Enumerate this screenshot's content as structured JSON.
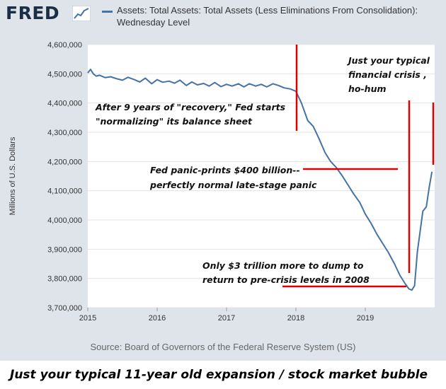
{
  "header": {
    "logo_text": "FRED",
    "logo_icon": "line-chart-icon",
    "legend_label": "Assets: Total Assets: Total Assets (Less Eliminations From Consolidation): Wednesday Level"
  },
  "source_text": "Source: Board of Governors of the Federal Reserve System (US)",
  "bottom_caption": "Just your typical 11-year old expansion / stock market bubble",
  "colors": {
    "series": "#4572a7",
    "annotation_line": "#e00000",
    "frame": "#dfe3ea"
  },
  "chart_data": {
    "type": "line",
    "ylabel": "Millions of U.S. Dollars",
    "xlabel": "",
    "ylim": [
      3700000,
      4600000
    ],
    "yticks": [
      3700000,
      3800000,
      3900000,
      4000000,
      4100000,
      4200000,
      4300000,
      4400000,
      4500000,
      4600000
    ],
    "ytick_labels": [
      "3,700,000",
      "3,800,000",
      "3,900,000",
      "4,000,000",
      "4,100,000",
      "4,200,000",
      "4,300,000",
      "4,400,000",
      "4,500,000",
      "4,600,000"
    ],
    "xlim": [
      2015.0,
      2020.0
    ],
    "xticks": [
      2015,
      2016,
      2017,
      2018,
      2019
    ],
    "xtick_labels": [
      "2015",
      "2016",
      "2017",
      "2018",
      "2019"
    ],
    "grid": "horizontal",
    "legend": "top",
    "series": [
      {
        "x": [
          2015.0,
          2015.04,
          2015.08,
          2015.12,
          2015.17,
          2015.25,
          2015.33,
          2015.42,
          2015.5,
          2015.58,
          2015.67,
          2015.75,
          2015.83,
          2015.92,
          2016.0,
          2016.08,
          2016.17,
          2016.25,
          2016.33,
          2016.42,
          2016.5,
          2016.58,
          2016.67,
          2016.75,
          2016.83,
          2016.92,
          2017.0,
          2017.08,
          2017.17,
          2017.25,
          2017.33,
          2017.42,
          2017.5,
          2017.58,
          2017.67,
          2017.75,
          2017.83,
          2017.92,
          2018.0,
          2018.08,
          2018.17,
          2018.25,
          2018.33,
          2018.42,
          2018.5,
          2018.58,
          2018.67,
          2018.75,
          2018.83,
          2018.92,
          2019.0,
          2019.08,
          2019.17,
          2019.25,
          2019.33,
          2019.42,
          2019.5,
          2019.58,
          2019.63,
          2019.67,
          2019.71,
          2019.75,
          2019.79,
          2019.83,
          2019.88,
          2019.92,
          2019.96
        ],
        "values": [
          4503000,
          4515000,
          4500000,
          4492000,
          4495000,
          4487000,
          4490000,
          4483000,
          4478000,
          4488000,
          4480000,
          4472000,
          4485000,
          4466000,
          4480000,
          4471000,
          4475000,
          4468000,
          4478000,
          4460000,
          4472000,
          4462000,
          4467000,
          4458000,
          4470000,
          4456000,
          4464000,
          4458000,
          4466000,
          4455000,
          4466000,
          4458000,
          4464000,
          4455000,
          4466000,
          4460000,
          4452000,
          4448000,
          4440000,
          4400000,
          4340000,
          4320000,
          4280000,
          4230000,
          4200000,
          4180000,
          4150000,
          4120000,
          4090000,
          4060000,
          4020000,
          3990000,
          3950000,
          3920000,
          3890000,
          3850000,
          3810000,
          3780000,
          3764000,
          3760000,
          3775000,
          3890000,
          3960000,
          4030000,
          4045000,
          4110000,
          4165000
        ]
      }
    ],
    "annotations": [
      {
        "text": "After 9 years of \"recovery,\" Fed starts",
        "text2": "\"normalizing\" its balance sheet"
      },
      {
        "text": "Fed panic-prints $400 billion--",
        "text2": "perfectly normal late-stage panic"
      },
      {
        "text": "Only $3 trillion more to dump to",
        "text2": "return to pre-crisis levels in 2008"
      },
      {
        "text": "Just your typical",
        "text2": "financial crisis ,",
        "text3": "ho-hum"
      }
    ]
  }
}
